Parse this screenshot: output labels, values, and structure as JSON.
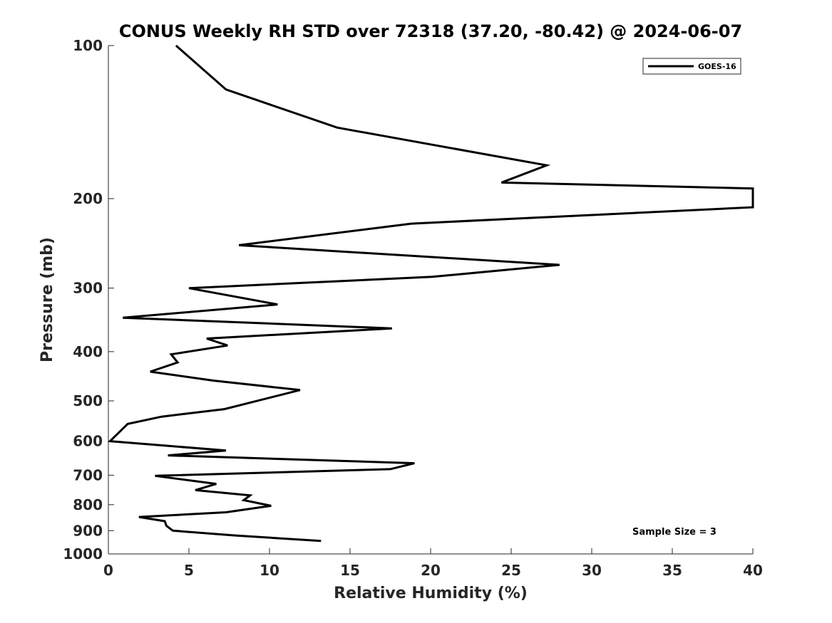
{
  "chart_data": {
    "type": "line",
    "title": "CONUS Weekly RH STD over 72318 (37.20, -80.42) @ 2024-06-07",
    "xlabel": "Relative Humidity (%)",
    "ylabel": "Pressure (mb)",
    "xlim": [
      0,
      40
    ],
    "ylim": [
      100,
      1000
    ],
    "y_scale": "log",
    "y_reversed": true,
    "x_ticks": [
      "0",
      "5",
      "10",
      "15",
      "20",
      "25",
      "30",
      "35",
      "40"
    ],
    "y_ticks": [
      "100",
      "200",
      "300",
      "400",
      "500",
      "600",
      "700",
      "800",
      "900",
      "1000"
    ],
    "grid": false,
    "legend_position": "top-right",
    "annotation": "Sample Size = 3",
    "series": [
      {
        "name": "GOES-16",
        "color": "#000000",
        "x": [
          4.2,
          7.3,
          14.2,
          27.2,
          24.4,
          40,
          40,
          18.8,
          8.1,
          28.0,
          20.1,
          5.0,
          10.5,
          0.9,
          17.6,
          6.1,
          7.4,
          3.9,
          4.3,
          2.6,
          6.5,
          11.9,
          7.2,
          3.3,
          1.2,
          0.1,
          7.3,
          3.7,
          19.0,
          17.5,
          2.9,
          6.7,
          5.4,
          8.8,
          8.4,
          10.1,
          7.3,
          1.9,
          3.5,
          3.6,
          4.0,
          7.9,
          13.2
        ],
        "y": [
          100,
          122,
          145,
          172,
          186,
          191,
          208,
          224,
          247,
          270,
          285,
          300,
          323,
          343,
          360,
          377,
          389,
          405,
          420,
          438,
          456,
          476,
          519,
          537,
          555,
          600,
          626,
          640,
          663,
          681,
          702,
          728,
          749,
          767,
          784,
          804,
          828,
          846,
          862,
          880,
          900,
          920,
          943
        ]
      }
    ]
  }
}
